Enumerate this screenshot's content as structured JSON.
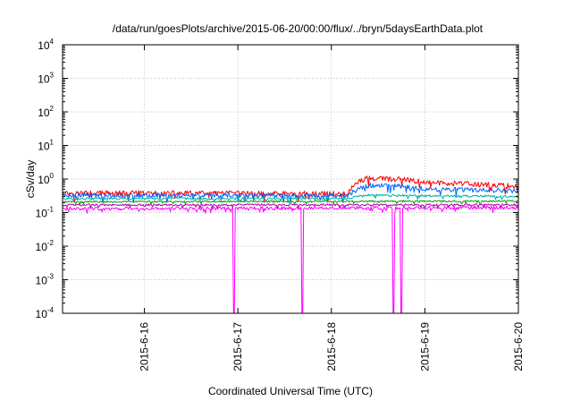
{
  "chart_data": {
    "type": "line",
    "title": "/data/run/goesPlots/archive/2015-06-20/00:00/flux/../bryn/5daysEarthData.plot",
    "xlabel": "Coordinated Universal Time (UTC)",
    "ylabel": "cSv/day",
    "xscale": "time",
    "yscale": "log",
    "xlim": [
      "2015-06-15T03:00",
      "2015-06-20T00:00"
    ],
    "ylim": [
      0.0001,
      10000
    ],
    "grid": true,
    "legend": "none",
    "x_ticks": [
      "2015-6-16",
      "2015-6-17",
      "2015-6-18",
      "2015-6-19",
      "2015-6-20"
    ],
    "y_ticks": [
      {
        "base": "10",
        "exp": "-4"
      },
      {
        "base": "10",
        "exp": "-3"
      },
      {
        "base": "10",
        "exp": "-2"
      },
      {
        "base": "10",
        "exp": "-1"
      },
      {
        "base": "10",
        "exp": "0"
      },
      {
        "base": "10",
        "exp": "1"
      },
      {
        "base": "10",
        "exp": "2"
      },
      {
        "base": "10",
        "exp": "3"
      },
      {
        "base": "10",
        "exp": "4"
      }
    ],
    "series": [
      {
        "color": "#ff0000",
        "segments": [
          {
            "x": "2015-06-15T03:00",
            "y": 0.38
          },
          {
            "x": "2015-06-18T04:00",
            "y": 0.36
          },
          {
            "x": "2015-06-18T06:00",
            "y": 0.7
          },
          {
            "x": "2015-06-18T09:00",
            "y": 1.05
          },
          {
            "x": "2015-06-18T15:00",
            "y": 1.0
          },
          {
            "x": "2015-06-18T18:00",
            "y": 0.95
          },
          {
            "x": "2015-06-19T00:00",
            "y": 0.8
          },
          {
            "x": "2015-06-19T12:00",
            "y": 0.7
          },
          {
            "x": "2015-06-20T00:00",
            "y": 0.6
          }
        ],
        "noise": 0.08
      },
      {
        "color": "#0066ff",
        "segments": [
          {
            "x": "2015-06-15T03:00",
            "y": 0.33
          },
          {
            "x": "2015-06-18T04:00",
            "y": 0.32
          },
          {
            "x": "2015-06-18T07:00",
            "y": 0.5
          },
          {
            "x": "2015-06-18T10:00",
            "y": 0.65
          },
          {
            "x": "2015-06-18T18:00",
            "y": 0.62
          },
          {
            "x": "2015-06-19T00:00",
            "y": 0.5
          },
          {
            "x": "2015-06-20T00:00",
            "y": 0.45
          }
        ],
        "noise": 0.07
      },
      {
        "color": "#00b0b0",
        "segments": [
          {
            "x": "2015-06-15T03:00",
            "y": 0.26
          },
          {
            "x": "2015-06-18T04:00",
            "y": 0.26
          },
          {
            "x": "2015-06-18T09:00",
            "y": 0.33
          },
          {
            "x": "2015-06-18T18:00",
            "y": 0.32
          },
          {
            "x": "2015-06-20T00:00",
            "y": 0.3
          }
        ],
        "noise": 0.035
      },
      {
        "color": "#00a000",
        "segments": [
          {
            "x": "2015-06-15T03:00",
            "y": 0.21
          },
          {
            "x": "2015-06-20T00:00",
            "y": 0.22
          }
        ],
        "noise": 0.025
      },
      {
        "color": "#b000b0",
        "segments": [
          {
            "x": "2015-06-15T03:00",
            "y": 0.17
          },
          {
            "x": "2015-06-20T00:00",
            "y": 0.17
          }
        ],
        "noise": 0.03
      },
      {
        "color": "#ff00ff",
        "segments": [
          {
            "x": "2015-06-15T03:00",
            "y": 0.13
          },
          {
            "x": "2015-06-20T00:00",
            "y": 0.14
          }
        ],
        "noise": 0.05,
        "dropouts": [
          {
            "x": "2015-06-16T23:00",
            "y": 0.0001
          },
          {
            "x": "2015-06-17T16:30",
            "y": 0.0001
          },
          {
            "x": "2015-06-18T16:00",
            "y": 0.0001
          },
          {
            "x": "2015-06-18T18:00",
            "y": 0.0001
          }
        ]
      }
    ]
  }
}
